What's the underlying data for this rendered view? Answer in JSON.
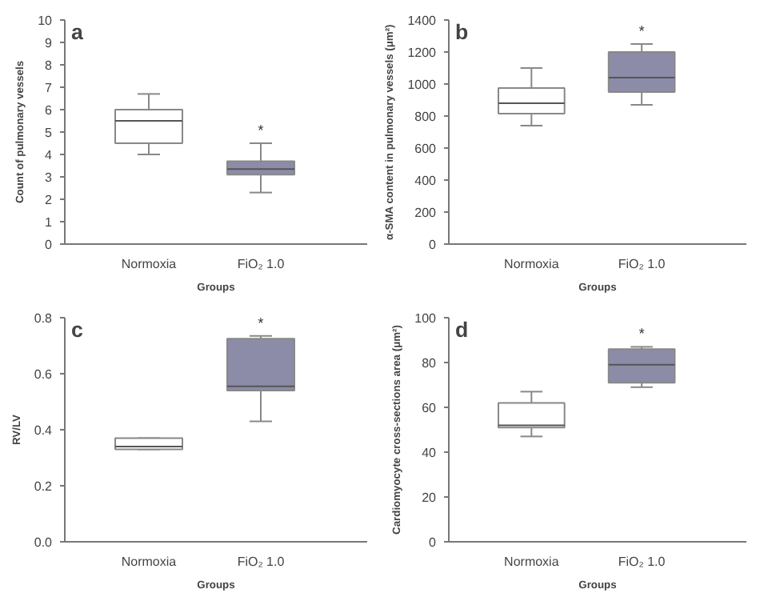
{
  "chart_data": [
    {
      "type": "box",
      "title": "a",
      "xlabel": "Groups",
      "ylabel": "Count of pulmonary vessels",
      "categories": [
        "Normoxia",
        "FiO₂ 1.0"
      ],
      "colors": [
        "#ffffff",
        "#8c8ca8"
      ],
      "boxes": [
        {
          "low": 4.0,
          "q1": 4.5,
          "median": 5.5,
          "q3": 6.0,
          "high": 6.7
        },
        {
          "low": 2.3,
          "q1": 3.1,
          "median": 3.35,
          "q3": 3.7,
          "high": 4.5
        }
      ],
      "ylim": [
        0,
        10
      ],
      "yticks": [
        0,
        1,
        2,
        3,
        4,
        5,
        6,
        7,
        8,
        9,
        10
      ],
      "grid": false,
      "annotations": [
        "*"
      ]
    },
    {
      "type": "box",
      "title": "b",
      "xlabel": "Groups",
      "ylabel": "α-SMA content in pulmonary vessels (μm²)",
      "categories": [
        "Normoxia",
        "FiO₂ 1.0"
      ],
      "colors": [
        "#ffffff",
        "#8c8ca8"
      ],
      "boxes": [
        {
          "low": 740,
          "q1": 815,
          "median": 880,
          "q3": 975,
          "high": 1100
        },
        {
          "low": 870,
          "q1": 950,
          "median": 1040,
          "q3": 1200,
          "high": 1250
        }
      ],
      "ylim": [
        0,
        1400
      ],
      "yticks": [
        0,
        200,
        400,
        600,
        800,
        1000,
        1200,
        1400
      ],
      "grid": false,
      "annotations": [
        "*"
      ]
    },
    {
      "type": "box",
      "title": "c",
      "xlabel": "Groups",
      "ylabel": "RV/LV",
      "categories": [
        "Normoxia",
        "FiO₂ 1.0"
      ],
      "colors": [
        "#ffffff",
        "#8c8ca8"
      ],
      "boxes": [
        {
          "low": 0.33,
          "q1": 0.33,
          "median": 0.34,
          "q3": 0.37,
          "high": 0.37
        },
        {
          "low": 0.43,
          "q1": 0.54,
          "median": 0.555,
          "q3": 0.725,
          "high": 0.735
        }
      ],
      "ylim": [
        0,
        0.8
      ],
      "yticks": [
        {
          "value": 0,
          "label": "0.0"
        },
        0.2,
        0.4,
        0.6,
        0.8
      ],
      "grid": false,
      "annotations": [
        "*"
      ]
    },
    {
      "type": "box",
      "title": "d",
      "xlabel": "Groups",
      "ylabel": "Cardiomyocyte cross-sections area (μm²)",
      "categories": [
        "Normoxia",
        "FiO₂ 1.0"
      ],
      "colors": [
        "#ffffff",
        "#8c8ca8"
      ],
      "boxes": [
        {
          "low": 47,
          "q1": 51,
          "median": 52,
          "q3": 62,
          "high": 67
        },
        {
          "low": 69,
          "q1": 71,
          "median": 79,
          "q3": 86,
          "high": 87
        }
      ],
      "ylim": [
        0,
        100
      ],
      "yticks": [
        0,
        20,
        40,
        60,
        80,
        100
      ],
      "grid": false,
      "annotations": [
        "*"
      ]
    }
  ]
}
